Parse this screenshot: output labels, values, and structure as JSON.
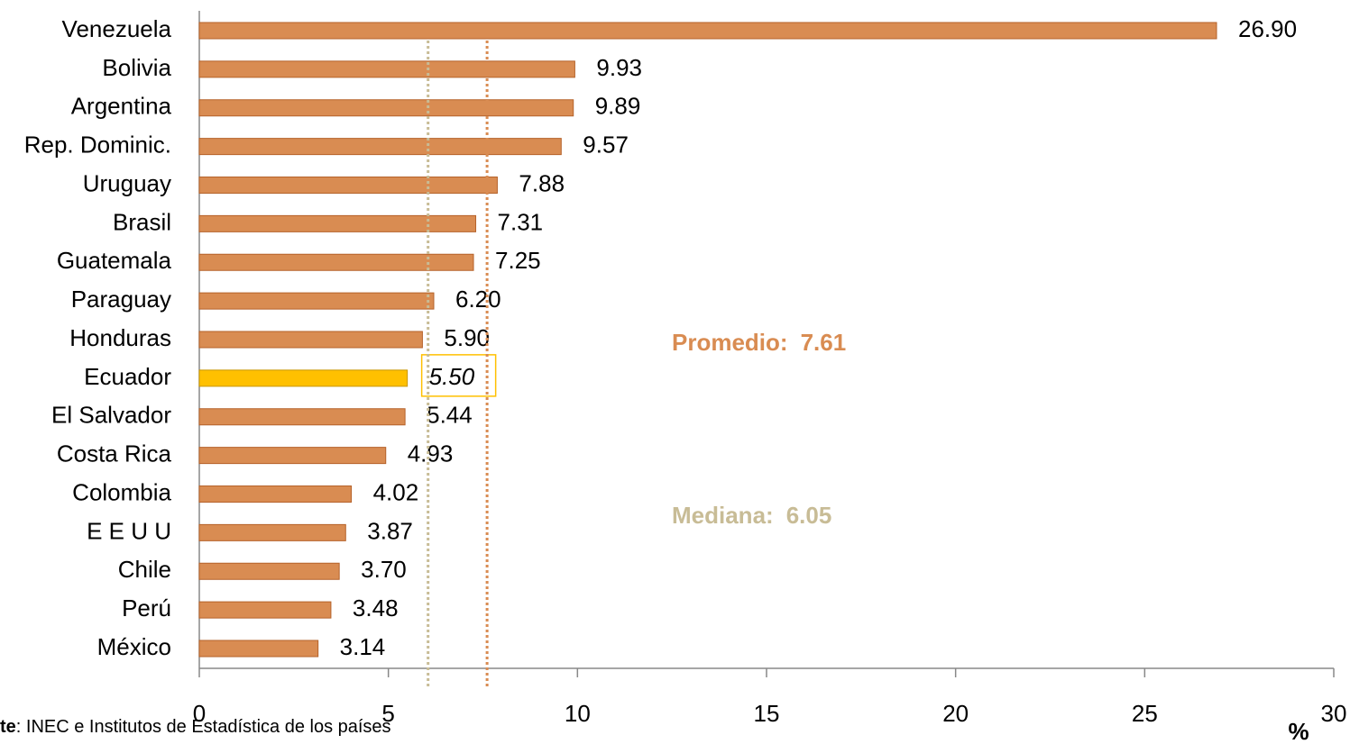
{
  "chart_data": {
    "type": "bar",
    "orientation": "horizontal",
    "categories": [
      "Venezuela",
      "Bolivia",
      "Argentina",
      "Rep. Dominic.",
      "Uruguay",
      "Brasil",
      "Guatemala",
      "Paraguay",
      "Honduras",
      "Ecuador",
      "El Salvador",
      "Costa Rica",
      "Colombia",
      "E E U U",
      "Chile",
      "Perú",
      "México"
    ],
    "values": [
      26.9,
      9.93,
      9.89,
      9.57,
      7.88,
      7.31,
      7.25,
      6.2,
      5.9,
      5.5,
      5.44,
      4.93,
      4.02,
      3.87,
      3.7,
      3.48,
      3.14
    ],
    "value_labels": [
      "26.90",
      "9.93",
      "9.89",
      "9.57",
      "7.88",
      "7.31",
      "7.25",
      "6.20",
      "5.90",
      "5.50",
      "5.44",
      "4.93",
      "4.02",
      "3.87",
      "3.70",
      "3.48",
      "3.14"
    ],
    "colors": [
      "#d98c52",
      "#d98c52",
      "#d98c52",
      "#d98c52",
      "#d98c52",
      "#d98c52",
      "#d98c52",
      "#d98c52",
      "#d98c52",
      "#ffc000",
      "#d98c52",
      "#d98c52",
      "#d98c52",
      "#d98c52",
      "#d98c52",
      "#d98c52",
      "#d98c52"
    ],
    "xlim": [
      0,
      30
    ],
    "xticks": [
      0,
      5,
      10,
      15,
      20,
      25,
      30
    ],
    "xlabel": "%",
    "annotations": [
      {
        "label": "Promedio:",
        "value": 7.61,
        "color": "#d98c52"
      },
      {
        "label": "Mediana:",
        "value": 6.05,
        "color": "#c8bc96"
      }
    ],
    "source": {
      "label": "te",
      "text": ": INEC e Institutos de Estadística de los países"
    }
  }
}
